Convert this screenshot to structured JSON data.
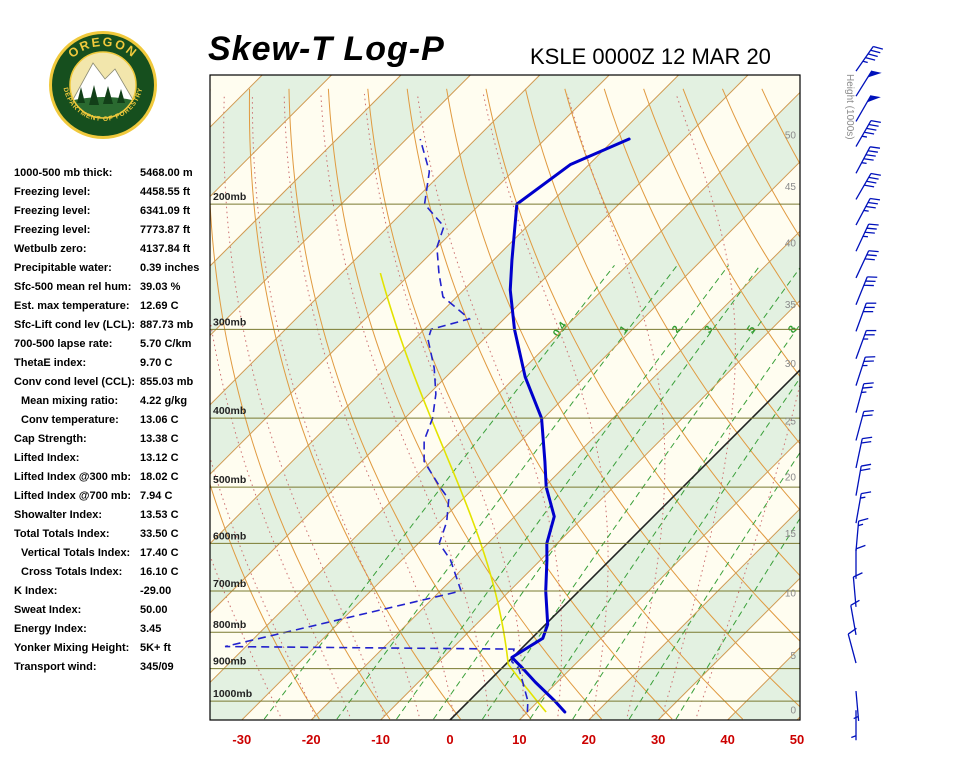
{
  "header": {
    "title": "Skew-T Log-P",
    "station": "KSLE 0000Z 12 MAR 20",
    "logo": {
      "top": "OREGON",
      "bottom": "DEPARTMENT OF FORESTRY"
    }
  },
  "panel": {
    "rows": [
      {
        "label": "1000-500 mb thick:",
        "value": "5468.00 m",
        "indent": false
      },
      {
        "label": "Freezing level:",
        "value": "4458.55 ft",
        "indent": false
      },
      {
        "label": "Freezing level:",
        "value": "6341.09 ft",
        "indent": false
      },
      {
        "label": "Freezing level:",
        "value": "7773.87 ft",
        "indent": false
      },
      {
        "label": "Wetbulb zero:",
        "value": "4137.84 ft",
        "indent": false
      },
      {
        "label": "Precipitable water:",
        "value": "0.39 inches",
        "indent": false
      },
      {
        "label": "Sfc-500 mean rel hum:",
        "value": "39.03 %",
        "indent": false
      },
      {
        "label": "Est. max temperature:",
        "value": "12.69 C",
        "indent": false
      },
      {
        "label": "Sfc-Lift cond lev (LCL):",
        "value": "887.73 mb",
        "indent": false
      },
      {
        "label": "700-500 lapse rate:",
        "value": "5.70 C/km",
        "indent": false
      },
      {
        "label": "ThetaE index:",
        "value": "9.70 C",
        "indent": false
      },
      {
        "label": "Conv cond level (CCL):",
        "value": "855.03 mb",
        "indent": false
      },
      {
        "label": "Mean mixing ratio:",
        "value": "4.22 g/kg",
        "indent": true
      },
      {
        "label": "Conv temperature:",
        "value": "13.06 C",
        "indent": true
      },
      {
        "label": "Cap Strength:",
        "value": "13.38 C",
        "indent": false
      },
      {
        "label": "Lifted Index:",
        "value": "13.12 C",
        "indent": false
      },
      {
        "label": "Lifted Index @300 mb:",
        "value": "18.02 C",
        "indent": false
      },
      {
        "label": "Lifted Index @700 mb:",
        "value": "7.94 C",
        "indent": false
      },
      {
        "label": "Showalter Index:",
        "value": "13.53 C",
        "indent": false
      },
      {
        "label": "Total Totals Index:",
        "value": "33.50 C",
        "indent": false
      },
      {
        "label": "Vertical Totals Index:",
        "value": "17.40 C",
        "indent": true
      },
      {
        "label": "Cross Totals Index:",
        "value": "16.10 C",
        "indent": true
      },
      {
        "label": "K Index:",
        "value": "-29.00",
        "indent": false
      },
      {
        "label": "Sweat Index:",
        "value": "50.00",
        "indent": false
      },
      {
        "label": "Energy Index:",
        "value": "3.45",
        "indent": false
      },
      {
        "label": "Yonker Mixing Height:",
        "value": "5K+ ft",
        "indent": false
      },
      {
        "label": "Transport wind:",
        "value": "345/09",
        "indent": false
      }
    ]
  },
  "chart_data": {
    "type": "skew-t-log-p",
    "title": "Skew-T Log-P",
    "station_time": "KSLE 0000Z 12 MAR 20",
    "pressure_range_mb": [
      132,
      1064
    ],
    "temp_axis": {
      "ticks_c": [
        -30,
        -20,
        -10,
        0,
        10,
        20,
        30,
        40,
        50
      ],
      "skew_deg": 45
    },
    "pressure_labels": [
      {
        "p": 200,
        "label": "200mb"
      },
      {
        "p": 300,
        "label": "300mb"
      },
      {
        "p": 400,
        "label": "400mb"
      },
      {
        "p": 500,
        "label": "500mb"
      },
      {
        "p": 600,
        "label": "600mb"
      },
      {
        "p": 700,
        "label": "700mb"
      },
      {
        "p": 800,
        "label": "800mb"
      },
      {
        "p": 900,
        "label": "900mb"
      },
      {
        "p": 1000,
        "label": "1000mb"
      }
    ],
    "height_scale": {
      "title": "Height (1000s)",
      "ticks": [
        {
          "label": "0",
          "p": 1029
        },
        {
          "label": "5",
          "p": 862
        },
        {
          "label": "10",
          "p": 705
        },
        {
          "label": "15",
          "p": 581
        },
        {
          "label": "20",
          "p": 484
        },
        {
          "label": "25",
          "p": 404
        },
        {
          "label": "30",
          "p": 335
        },
        {
          "label": "35",
          "p": 277
        },
        {
          "label": "40",
          "p": 227
        },
        {
          "label": "45",
          "p": 189
        },
        {
          "label": "50",
          "p": 160
        }
      ]
    },
    "temperature_profile": [
      [
        1036,
        15.4
      ],
      [
        1000,
        12.4
      ],
      [
        940,
        6.8
      ],
      [
        900,
        3.1
      ],
      [
        868,
        -0.1
      ],
      [
        816,
        1.6
      ],
      [
        780,
        0.3
      ],
      [
        700,
        -4.8
      ],
      [
        633,
        -9.1
      ],
      [
        600,
        -11.5
      ],
      [
        550,
        -14.3
      ],
      [
        500,
        -19.7
      ],
      [
        460,
        -23.6
      ],
      [
        400,
        -30.3
      ],
      [
        350,
        -38.6
      ],
      [
        300,
        -47.0
      ],
      [
        264,
        -53.3
      ],
      [
        240,
        -57.3
      ],
      [
        200,
        -64.7
      ],
      [
        176,
        -62.7
      ],
      [
        162,
        -57.9
      ]
    ],
    "dewpoint_profile": [
      [
        1036,
        10
      ],
      [
        1000,
        8.5
      ],
      [
        940,
        5
      ],
      [
        900,
        2.5
      ],
      [
        880,
        0.5
      ],
      [
        845,
        -1
      ],
      [
        838,
        -43
      ],
      [
        700,
        -17
      ],
      [
        633,
        -23
      ],
      [
        600,
        -27
      ],
      [
        560,
        -29
      ],
      [
        520,
        -32
      ],
      [
        500,
        -35
      ],
      [
        460,
        -41
      ],
      [
        430,
        -44
      ],
      [
        400,
        -46
      ],
      [
        370,
        -49
      ],
      [
        340,
        -53
      ],
      [
        310,
        -58
      ],
      [
        300,
        -59
      ],
      [
        290,
        -55
      ],
      [
        270,
        -62
      ],
      [
        250,
        -66
      ],
      [
        230,
        -70
      ],
      [
        215,
        -72
      ],
      [
        200,
        -78
      ],
      [
        180,
        -82
      ],
      [
        162,
        -88
      ]
    ],
    "parcel": {
      "sfc_p": 1036,
      "sfc_t": 12.7,
      "lcl_p": 887.73,
      "top_p": 250
    },
    "wind_barbs": [
      [
        130,
        35,
        45
      ],
      [
        141,
        32,
        50
      ],
      [
        153,
        30,
        50
      ],
      [
        166,
        30,
        45
      ],
      [
        181,
        28,
        45
      ],
      [
        197,
        30,
        40
      ],
      [
        214,
        28,
        35
      ],
      [
        233,
        25,
        35
      ],
      [
        254,
        25,
        30
      ],
      [
        277,
        22,
        30
      ],
      [
        302,
        20,
        30
      ],
      [
        330,
        20,
        25
      ],
      [
        360,
        18,
        25
      ],
      [
        393,
        15,
        25
      ],
      [
        430,
        15,
        20
      ],
      [
        470,
        12,
        20
      ],
      [
        514,
        10,
        20
      ],
      [
        562,
        10,
        15
      ],
      [
        615,
        5,
        15
      ],
      [
        673,
        0,
        10
      ],
      [
        737,
        355,
        10
      ],
      [
        807,
        350,
        10
      ],
      [
        884,
        345,
        10
      ],
      [
        968,
        175,
        5
      ],
      [
        1030,
        180,
        5
      ]
    ],
    "reference_lines": {
      "isobar_step_mb": 100,
      "isotherm_step_c": 10,
      "dry_adiabats_theta_k": {
        "min": 250,
        "max": 450,
        "step": 10
      },
      "moist_adiabat_start_temps_c": {
        "min": -25,
        "max": 35,
        "step": 5
      },
      "mixing_ratio_g_kg": [
        0.4,
        1,
        2,
        3,
        5,
        8,
        12,
        20,
        30
      ],
      "mixing_ratio_labels": [
        "0.4",
        "1",
        "2",
        "3",
        "5",
        "8"
      ],
      "mixing_ratio_label_p": 302
    },
    "colors": {
      "temperature": "#0000cc",
      "dewpoint": "#2222cc",
      "parcel": "#e3e300",
      "wind_barb": "#0011bb",
      "isotherm": "#d09a52",
      "isotherm_zero": "#222222",
      "isobar": "#7a7a30",
      "dry_adiabat": "#e09a40",
      "moist_adiabat": "#cc7070",
      "mixing_ratio": "#3aa03a",
      "mixing_ratio_text": "#2f9e2f",
      "temp_axis_text": "#cc0000",
      "height_text": "#8a8a8a",
      "band_green": "#e3f1e1",
      "band_cream": "#fffdf0"
    }
  }
}
